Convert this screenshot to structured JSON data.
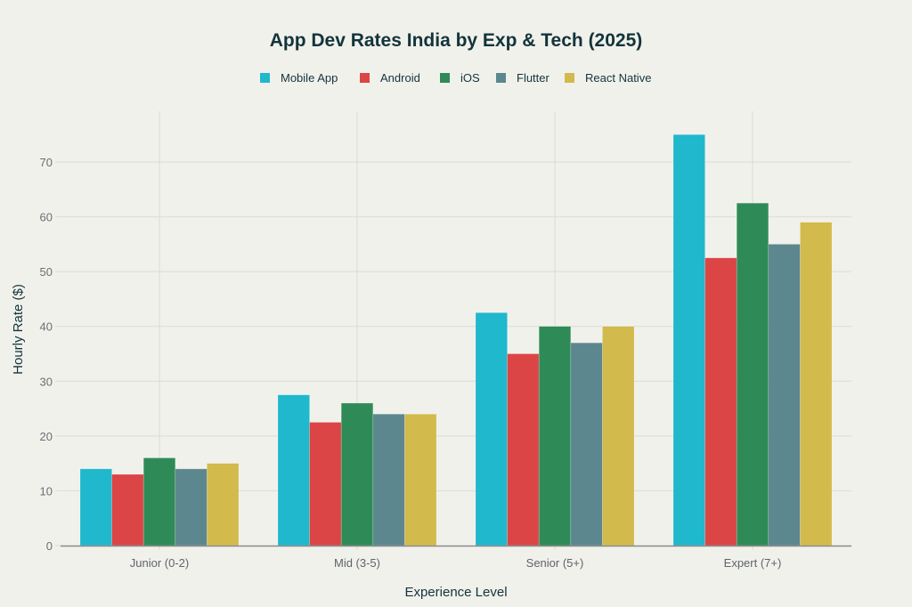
{
  "chart_data": {
    "type": "bar",
    "title": "App Dev Rates India by Exp & Tech (2025)",
    "xlabel": "Experience Level",
    "ylabel": "Hourly Rate ($)",
    "categories": [
      "Junior (0-2)",
      "Mid (3-5)",
      "Senior (5+)",
      "Expert (7+)"
    ],
    "series": [
      {
        "name": "Mobile App",
        "color": "#1fb8cd",
        "values": [
          14,
          27.5,
          42.5,
          75
        ]
      },
      {
        "name": "Android",
        "color": "#db4545",
        "values": [
          13,
          22.5,
          35,
          52.5
        ]
      },
      {
        "name": "iOS",
        "color": "#2e8b57",
        "values": [
          16,
          26,
          40,
          62.5
        ]
      },
      {
        "name": "Flutter",
        "color": "#5d878f",
        "values": [
          14,
          24,
          37,
          55
        ]
      },
      {
        "name": "React Native",
        "color": "#d2ba4c",
        "values": [
          15,
          24,
          40,
          59
        ]
      }
    ],
    "yticks": [
      0,
      10,
      20,
      30,
      40,
      50,
      60,
      70
    ],
    "ylim": [
      0,
      78
    ],
    "grid": true,
    "legend_position": "top-center"
  }
}
